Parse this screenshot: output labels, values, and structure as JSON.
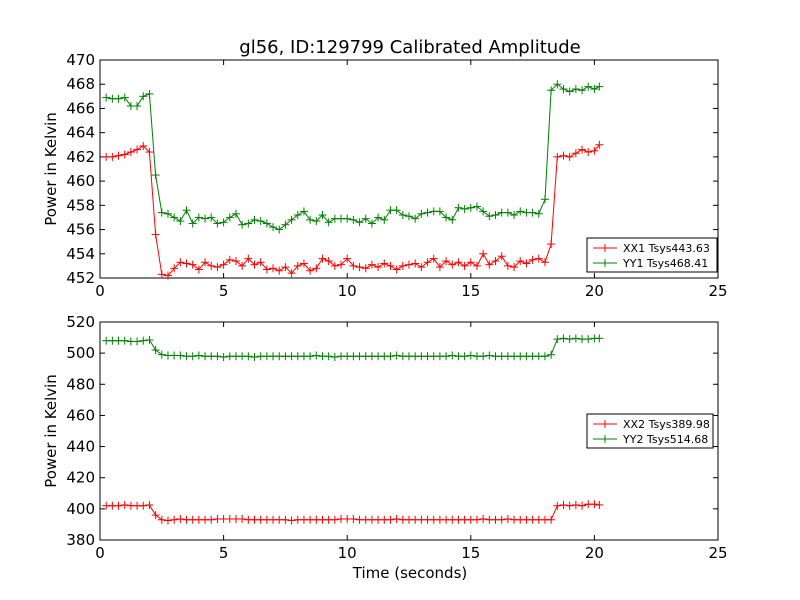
{
  "figure": {
    "title": "gl56, ID:129799 Calibrated Amplitude",
    "xlabel": "Time (seconds)",
    "ylabel": "Power in Kelvin"
  },
  "chart_data": [
    {
      "type": "line",
      "title": "gl56, ID:129799 Calibrated Amplitude",
      "xlabel": "",
      "ylabel": "Power in Kelvin",
      "xlim": [
        0,
        25
      ],
      "ylim": [
        452,
        470
      ],
      "xticks": [
        0,
        5,
        10,
        15,
        20,
        25
      ],
      "yticks": [
        452,
        454,
        456,
        458,
        460,
        462,
        464,
        466,
        468,
        470
      ],
      "legend_position": "lower-right",
      "series": [
        {
          "name": "XX1 Tsys443.63",
          "color": "#ff0000",
          "marker": "plus",
          "x": [
            0.25,
            0.5,
            0.75,
            1.0,
            1.25,
            1.5,
            1.75,
            2.0,
            2.25,
            2.5,
            2.75,
            3.0,
            3.25,
            3.5,
            3.75,
            4.0,
            4.25,
            4.5,
            4.75,
            5.0,
            5.25,
            5.5,
            5.75,
            6.0,
            6.25,
            6.5,
            6.75,
            7.0,
            7.25,
            7.5,
            7.75,
            8.0,
            8.25,
            8.5,
            8.75,
            9.0,
            9.25,
            9.5,
            9.75,
            10.0,
            10.25,
            10.5,
            10.75,
            11.0,
            11.25,
            11.5,
            11.75,
            12.0,
            12.25,
            12.5,
            12.75,
            13.0,
            13.25,
            13.5,
            13.75,
            14.0,
            14.25,
            14.5,
            14.75,
            15.0,
            15.25,
            15.5,
            15.75,
            16.0,
            16.25,
            16.5,
            16.75,
            17.0,
            17.25,
            17.5,
            17.75,
            18.0,
            18.25,
            18.5,
            18.75,
            19.0,
            19.25,
            19.5,
            19.75,
            20.0,
            20.2
          ],
          "values": [
            462.0,
            462.0,
            462.1,
            462.2,
            462.4,
            462.6,
            462.9,
            462.4,
            455.6,
            452.3,
            452.2,
            452.8,
            453.3,
            453.2,
            453.1,
            452.7,
            453.3,
            453.0,
            452.9,
            453.1,
            453.5,
            453.4,
            453.0,
            453.6,
            453.1,
            453.3,
            452.7,
            452.8,
            452.6,
            452.9,
            452.4,
            453.0,
            453.2,
            452.6,
            452.8,
            453.6,
            453.4,
            453.0,
            453.1,
            453.6,
            453.0,
            452.9,
            452.8,
            453.1,
            452.9,
            453.2,
            453.0,
            452.7,
            453.0,
            453.1,
            453.2,
            452.9,
            453.3,
            453.6,
            452.9,
            453.4,
            453.1,
            453.3,
            453.0,
            453.3,
            453.0,
            454.0,
            453.1,
            453.4,
            453.8,
            453.0,
            452.9,
            453.4,
            453.2,
            453.5,
            453.6,
            453.3,
            454.8,
            462.0,
            462.1,
            462.0,
            462.3,
            462.6,
            462.4,
            462.5,
            463.0
          ]
        },
        {
          "name": "YY1 Tsys468.41",
          "color": "#008000",
          "marker": "plus",
          "x": [
            0.25,
            0.5,
            0.75,
            1.0,
            1.25,
            1.5,
            1.75,
            2.0,
            2.25,
            2.5,
            2.75,
            3.0,
            3.25,
            3.5,
            3.75,
            4.0,
            4.25,
            4.5,
            4.75,
            5.0,
            5.25,
            5.5,
            5.75,
            6.0,
            6.25,
            6.5,
            6.75,
            7.0,
            7.25,
            7.5,
            7.75,
            8.0,
            8.25,
            8.5,
            8.75,
            9.0,
            9.25,
            9.5,
            9.75,
            10.0,
            10.25,
            10.5,
            10.75,
            11.0,
            11.25,
            11.5,
            11.75,
            12.0,
            12.25,
            12.5,
            12.75,
            13.0,
            13.25,
            13.5,
            13.75,
            14.0,
            14.25,
            14.5,
            14.75,
            15.0,
            15.25,
            15.5,
            15.75,
            16.0,
            16.25,
            16.5,
            16.75,
            17.0,
            17.25,
            17.5,
            17.75,
            18.0,
            18.25,
            18.5,
            18.75,
            19.0,
            19.25,
            19.5,
            19.75,
            20.0,
            20.2
          ],
          "values": [
            466.9,
            466.8,
            466.8,
            466.9,
            466.2,
            466.2,
            467.0,
            467.2,
            460.5,
            457.4,
            457.3,
            457.0,
            456.7,
            457.6,
            456.5,
            457.0,
            456.9,
            457.0,
            456.5,
            456.6,
            457.0,
            457.3,
            456.4,
            456.5,
            456.8,
            456.7,
            456.5,
            456.2,
            456.0,
            456.4,
            456.8,
            457.2,
            457.5,
            456.8,
            456.7,
            457.2,
            456.6,
            456.9,
            456.9,
            456.9,
            456.8,
            456.6,
            456.9,
            456.5,
            457.0,
            456.8,
            457.6,
            457.6,
            457.2,
            457.1,
            456.9,
            457.3,
            457.4,
            457.5,
            457.5,
            457.0,
            456.8,
            457.8,
            457.7,
            457.8,
            457.9,
            457.5,
            457.1,
            457.2,
            457.4,
            457.4,
            457.2,
            457.5,
            457.4,
            457.4,
            457.3,
            458.5,
            467.5,
            468.0,
            467.6,
            467.4,
            467.6,
            467.5,
            467.8,
            467.6,
            467.8
          ]
        }
      ]
    },
    {
      "type": "line",
      "title": "",
      "xlabel": "Time (seconds)",
      "ylabel": "Power in Kelvin",
      "xlim": [
        0,
        25
      ],
      "ylim": [
        380,
        520
      ],
      "xticks": [
        0,
        5,
        10,
        15,
        20,
        25
      ],
      "yticks": [
        380,
        400,
        420,
        440,
        460,
        480,
        500,
        520
      ],
      "legend_position": "center-right",
      "series": [
        {
          "name": "XX2 Tsys389.98",
          "color": "#ff0000",
          "marker": "plus",
          "x": [
            0.25,
            0.5,
            0.75,
            1.0,
            1.25,
            1.5,
            1.75,
            2.0,
            2.25,
            2.5,
            2.75,
            3.0,
            3.25,
            3.5,
            3.75,
            4.0,
            4.25,
            4.5,
            4.75,
            5.0,
            5.25,
            5.5,
            5.75,
            6.0,
            6.25,
            6.5,
            6.75,
            7.0,
            7.25,
            7.5,
            7.75,
            8.0,
            8.25,
            8.5,
            8.75,
            9.0,
            9.25,
            9.5,
            9.75,
            10.0,
            10.25,
            10.5,
            10.75,
            11.0,
            11.25,
            11.5,
            11.75,
            12.0,
            12.25,
            12.5,
            12.75,
            13.0,
            13.25,
            13.5,
            13.75,
            14.0,
            14.25,
            14.5,
            14.75,
            15.0,
            15.25,
            15.5,
            15.75,
            16.0,
            16.25,
            16.5,
            16.75,
            17.0,
            17.25,
            17.5,
            17.75,
            18.0,
            18.25,
            18.5,
            18.75,
            19.0,
            19.25,
            19.5,
            19.75,
            20.0,
            20.2
          ],
          "values": [
            402,
            402,
            402,
            402.5,
            402,
            402,
            402,
            402.5,
            396,
            393,
            392.5,
            393,
            393.5,
            393,
            393,
            393,
            393,
            393,
            393.5,
            393.5,
            393.5,
            393.5,
            393.5,
            393,
            393,
            393,
            393,
            393,
            393,
            393,
            392.5,
            393,
            393,
            393,
            393,
            393,
            393,
            393,
            393.5,
            393.5,
            393.5,
            393,
            393,
            393,
            393,
            393,
            393,
            393.5,
            393,
            393,
            393,
            393,
            393,
            393,
            393,
            393,
            393,
            393,
            393,
            393,
            393,
            393.5,
            393,
            393,
            393,
            393.5,
            393,
            393,
            393,
            393,
            393,
            393,
            393,
            402,
            402.5,
            402,
            402.5,
            402,
            403,
            403,
            402.5
          ]
        },
        {
          "name": "YY2 Tsys514.68",
          "color": "#008000",
          "marker": "plus",
          "x": [
            0.25,
            0.5,
            0.75,
            1.0,
            1.25,
            1.5,
            1.75,
            2.0,
            2.25,
            2.5,
            2.75,
            3.0,
            3.25,
            3.5,
            3.75,
            4.0,
            4.25,
            4.5,
            4.75,
            5.0,
            5.25,
            5.5,
            5.75,
            6.0,
            6.25,
            6.5,
            6.75,
            7.0,
            7.25,
            7.5,
            7.75,
            8.0,
            8.25,
            8.5,
            8.75,
            9.0,
            9.25,
            9.5,
            9.75,
            10.0,
            10.25,
            10.5,
            10.75,
            11.0,
            11.25,
            11.5,
            11.75,
            12.0,
            12.25,
            12.5,
            12.75,
            13.0,
            13.25,
            13.5,
            13.75,
            14.0,
            14.25,
            14.5,
            14.75,
            15.0,
            15.25,
            15.5,
            15.75,
            16.0,
            16.25,
            16.5,
            16.75,
            17.0,
            17.25,
            17.5,
            17.75,
            18.0,
            18.25,
            18.5,
            18.75,
            19.0,
            19.25,
            19.5,
            19.75,
            20.0,
            20.2
          ],
          "values": [
            508,
            508,
            508,
            508,
            507.5,
            507.5,
            508,
            508.5,
            502,
            499,
            498.5,
            498.5,
            498.5,
            498,
            498,
            498.5,
            498,
            498,
            498,
            497.5,
            498,
            498,
            498,
            498,
            497.5,
            498,
            498,
            498,
            498,
            498,
            498,
            498,
            498,
            498,
            498.5,
            498,
            498,
            497.5,
            498,
            498,
            498,
            498,
            498,
            498,
            498,
            498,
            498,
            498.5,
            498,
            498,
            498,
            498,
            498,
            498,
            498,
            498,
            498.5,
            498,
            498,
            498.5,
            498,
            498,
            498.5,
            498,
            498,
            498,
            498,
            498,
            498,
            498,
            498,
            498,
            499,
            509,
            509.5,
            509,
            509.5,
            509,
            509,
            509.5,
            509.5
          ]
        }
      ]
    }
  ]
}
